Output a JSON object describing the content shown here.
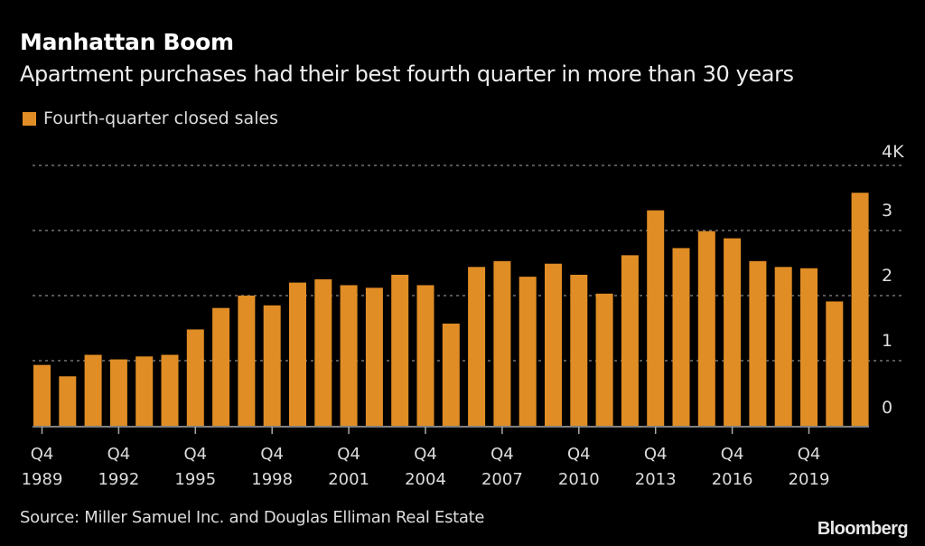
{
  "header": {
    "title": "Manhattan Boom",
    "subtitle": "Apartment purchases had their best fourth quarter in more than 30 years"
  },
  "legend": {
    "label": "Fourth-quarter closed sales",
    "color": "#e08d25"
  },
  "footer": {
    "source": "Source: Miller Samuel Inc. and Douglas Elliman Real Estate",
    "brand": "Bloomberg"
  },
  "chart_data": {
    "type": "bar",
    "title": "Manhattan Boom",
    "subtitle": "Apartment purchases had their best fourth quarter in more than 30 years",
    "xlabel": "",
    "ylabel": "",
    "categories": [
      "Q4 1989",
      "Q4 1990",
      "Q4 1991",
      "Q4 1992",
      "Q4 1993",
      "Q4 1994",
      "Q4 1995",
      "Q4 1996",
      "Q4 1997",
      "Q4 1998",
      "Q4 1999",
      "Q4 2000",
      "Q4 2001",
      "Q4 2002",
      "Q4 2003",
      "Q4 2004",
      "Q4 2005",
      "Q4 2006",
      "Q4 2007",
      "Q4 2008",
      "Q4 2009",
      "Q4 2010",
      "Q4 2011",
      "Q4 2012",
      "Q4 2013",
      "Q4 2014",
      "Q4 2015",
      "Q4 2016",
      "Q4 2017",
      "Q4 2018",
      "Q4 2019",
      "Q4 2020",
      "Q4 2021"
    ],
    "series": [
      {
        "name": "Fourth-quarter closed sales",
        "color": "#e08d25",
        "values": [
          935,
          760,
          1090,
          1020,
          1065,
          1090,
          1480,
          1810,
          2000,
          1850,
          2200,
          2250,
          2160,
          2120,
          2320,
          2160,
          1570,
          2440,
          2530,
          2290,
          2490,
          2320,
          2030,
          2620,
          3310,
          2730,
          2990,
          2880,
          2530,
          2440,
          2420,
          1910,
          3580
        ]
      }
    ],
    "ylim": [
      0,
      4000
    ],
    "yticks": [
      0,
      1000,
      2000,
      3000,
      4000
    ],
    "ytick_labels": [
      "0",
      "1",
      "2",
      "3",
      "4K"
    ],
    "xtick_labels": [
      {
        "index": 0,
        "line1": "Q4",
        "line2": "1989"
      },
      {
        "index": 3,
        "line1": "Q4",
        "line2": "1992"
      },
      {
        "index": 6,
        "line1": "Q4",
        "line2": "1995"
      },
      {
        "index": 9,
        "line1": "Q4",
        "line2": "1998"
      },
      {
        "index": 12,
        "line1": "Q4",
        "line2": "2001"
      },
      {
        "index": 15,
        "line1": "Q4",
        "line2": "2004"
      },
      {
        "index": 18,
        "line1": "Q4",
        "line2": "2007"
      },
      {
        "index": 21,
        "line1": "Q4",
        "line2": "2010"
      },
      {
        "index": 24,
        "line1": "Q4",
        "line2": "2013"
      },
      {
        "index": 27,
        "line1": "Q4",
        "line2": "2016"
      },
      {
        "index": 30,
        "line1": "Q4",
        "line2": "2019"
      }
    ],
    "grid": true,
    "legend_position": "top-left",
    "yaxis_position": "right"
  }
}
